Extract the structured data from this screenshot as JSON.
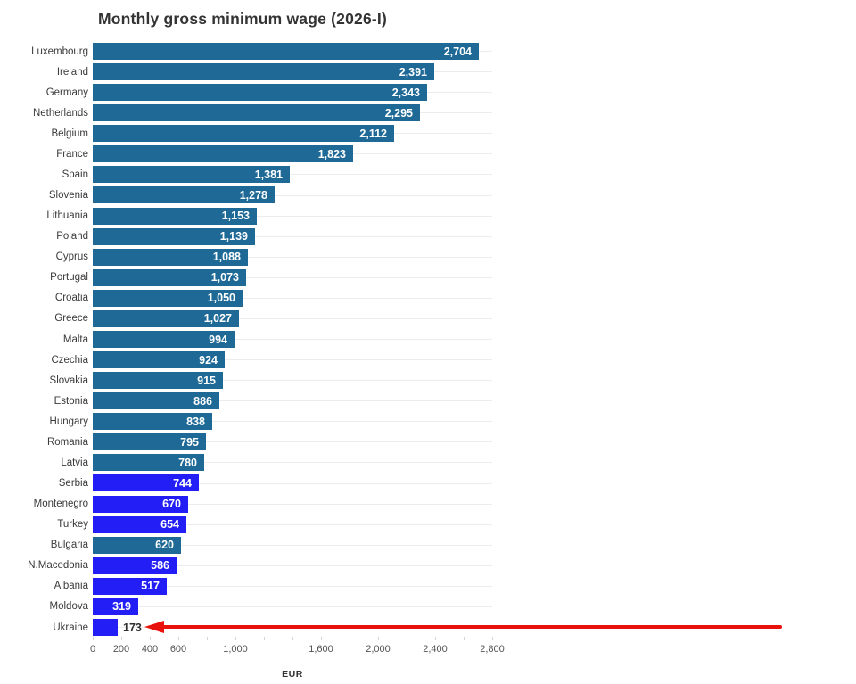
{
  "colors": {
    "eu_bar": "#1e6996",
    "candidate_bar": "#221ef5",
    "annotation_arrow": "#e8110c",
    "title_text": "#333333",
    "value_label_inside": "#ffffff",
    "value_label_outside": "#2e2e2e"
  },
  "chart_data": {
    "type": "bar",
    "orientation": "horizontal",
    "title": "Monthly gross minimum wage (2026-I)",
    "xlabel": "EUR",
    "grid": "row-lines",
    "x_axis": {
      "min": 0,
      "max": 2800,
      "minor_tick_step": 200,
      "tick_labels": [
        {
          "value": 0,
          "label": "0"
        },
        {
          "value": 200,
          "label": "200"
        },
        {
          "value": 400,
          "label": "400"
        },
        {
          "value": 600,
          "label": "600"
        },
        {
          "value": 1000,
          "label": "1,000"
        },
        {
          "value": 1600,
          "label": "1,600"
        },
        {
          "value": 2000,
          "label": "2,000"
        },
        {
          "value": 2400,
          "label": "2,400"
        },
        {
          "value": 2800,
          "label": "2,800"
        }
      ]
    },
    "palette": {
      "eu": "#1e6996",
      "candidate": "#221ef5"
    },
    "bars": [
      {
        "label": "Luxembourg",
        "value": 2704,
        "display": "2,704",
        "group": "eu"
      },
      {
        "label": "Ireland",
        "value": 2391,
        "display": "2,391",
        "group": "eu"
      },
      {
        "label": "Germany",
        "value": 2343,
        "display": "2,343",
        "group": "eu"
      },
      {
        "label": "Netherlands",
        "value": 2295,
        "display": "2,295",
        "group": "eu"
      },
      {
        "label": "Belgium",
        "value": 2112,
        "display": "2,112",
        "group": "eu"
      },
      {
        "label": "France",
        "value": 1823,
        "display": "1,823",
        "group": "eu"
      },
      {
        "label": "Spain",
        "value": 1381,
        "display": "1,381",
        "group": "eu"
      },
      {
        "label": "Slovenia",
        "value": 1278,
        "display": "1,278",
        "group": "eu"
      },
      {
        "label": "Lithuania",
        "value": 1153,
        "display": "1,153",
        "group": "eu"
      },
      {
        "label": "Poland",
        "value": 1139,
        "display": "1,139",
        "group": "eu"
      },
      {
        "label": "Cyprus",
        "value": 1088,
        "display": "1,088",
        "group": "eu"
      },
      {
        "label": "Portugal",
        "value": 1073,
        "display": "1,073",
        "group": "eu"
      },
      {
        "label": "Croatia",
        "value": 1050,
        "display": "1,050",
        "group": "eu"
      },
      {
        "label": "Greece",
        "value": 1027,
        "display": "1,027",
        "group": "eu"
      },
      {
        "label": "Malta",
        "value": 994,
        "display": "994",
        "group": "eu"
      },
      {
        "label": "Czechia",
        "value": 924,
        "display": "924",
        "group": "eu"
      },
      {
        "label": "Slovakia",
        "value": 915,
        "display": "915",
        "group": "eu"
      },
      {
        "label": "Estonia",
        "value": 886,
        "display": "886",
        "group": "eu"
      },
      {
        "label": "Hungary",
        "value": 838,
        "display": "838",
        "group": "eu"
      },
      {
        "label": "Romania",
        "value": 795,
        "display": "795",
        "group": "eu"
      },
      {
        "label": "Latvia",
        "value": 780,
        "display": "780",
        "group": "eu"
      },
      {
        "label": "Serbia",
        "value": 744,
        "display": "744",
        "group": "candidate"
      },
      {
        "label": "Montenegro",
        "value": 670,
        "display": "670",
        "group": "candidate"
      },
      {
        "label": "Turkey",
        "value": 654,
        "display": "654",
        "group": "candidate"
      },
      {
        "label": "Bulgaria",
        "value": 620,
        "display": "620",
        "group": "eu"
      },
      {
        "label": "N.Macedonia",
        "value": 586,
        "display": "586",
        "group": "candidate"
      },
      {
        "label": "Albania",
        "value": 517,
        "display": "517",
        "group": "candidate"
      },
      {
        "label": "Moldova",
        "value": 319,
        "display": "319",
        "group": "candidate"
      },
      {
        "label": "Ukraine",
        "value": 173,
        "display": "173",
        "group": "candidate"
      }
    ],
    "annotation": {
      "type": "arrow",
      "direction": "left",
      "color": "#e8110c",
      "points_to": "Ukraine"
    }
  }
}
